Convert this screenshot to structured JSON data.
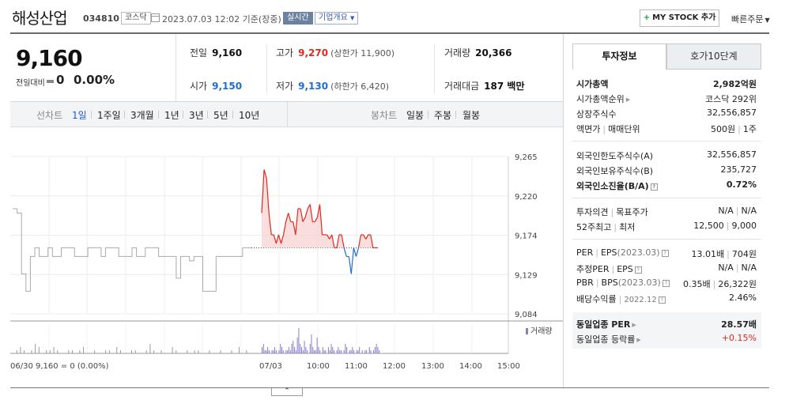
{
  "header": {
    "stock_name": "해성산업",
    "stock_code": "034810",
    "market": "코스닥",
    "datetime": "2023.07.03 12:02  기준(장중)",
    "realtime_badge": "실시간",
    "overview_label": "기업개요",
    "my_stock_label": "MY STOCK 추가",
    "quick_order_label": "빠른주문"
  },
  "price": {
    "current": "9,160",
    "change_label": "전일대비",
    "change_value": "0",
    "change_pct": "0.00%"
  },
  "stats": {
    "prev_close_label": "전일",
    "prev_close": "9,160",
    "open_label": "시가",
    "open": "9,150",
    "high_label": "고가",
    "high": "9,270",
    "upper_limit": "(상한가 11,900)",
    "low_label": "저가",
    "low": "9,130",
    "lower_limit": "(하한가 6,420)",
    "volume_label": "거래량",
    "volume": "20,366",
    "amount_label": "거래대금",
    "amount": "187 백만"
  },
  "line_tabs": {
    "label": "선차트",
    "items": [
      "1일",
      "1주일",
      "3개월",
      "1년",
      "3년",
      "5년",
      "10년"
    ],
    "active": "1일"
  },
  "candle_tabs": {
    "label": "봉차트",
    "items": [
      "일봉",
      "주봉",
      "월봉"
    ]
  },
  "chart_data": {
    "type": "line",
    "yticks": [
      "9,265",
      "9,220",
      "9,174",
      "9,129",
      "9,084"
    ],
    "xticks": [
      "07/03",
      "10:00",
      "11:00",
      "12:00",
      "13:00",
      "14:00",
      "15:00"
    ],
    "ylim": [
      9084,
      9265
    ],
    "baseline": 9160,
    "prev_day_label": "06/30  9,160 = 0 (0.00%)",
    "volume_legend": "거래량",
    "colors": {
      "up": "#e0291f",
      "down": "#1f6fd1",
      "prev": "#aaaaaa",
      "volume": "#8a7cc9"
    },
    "prev_day_series": [
      9205,
      9200,
      9130,
      9110,
      9150,
      9160,
      9150,
      9150,
      9160,
      9150,
      9150,
      9160,
      9160,
      9160,
      9150,
      9150,
      9150,
      9160,
      9160,
      9160,
      9150,
      9160,
      9160,
      9160,
      9150,
      9150,
      9150,
      9160,
      9150,
      9150,
      9160,
      9160,
      9160,
      9150,
      9150,
      9150,
      9150,
      9125,
      9150,
      9150,
      9145,
      9150,
      9150,
      9110,
      9110,
      9110,
      9150,
      9150,
      9150,
      9150,
      9150,
      9150,
      9160,
      9160,
      9160
    ],
    "today_series": [
      9200,
      9250,
      9240,
      9200,
      9175,
      9175,
      9165,
      9175,
      9165,
      9175,
      9190,
      9200,
      9190,
      9190,
      9175,
      9205,
      9205,
      9190,
      9195,
      9205,
      9210,
      9190,
      9190,
      9195,
      9210,
      9175,
      9175,
      9175,
      9170,
      9175,
      9160,
      9160,
      9175,
      9175,
      9160,
      9150,
      9150,
      9130,
      9160,
      9150,
      9160,
      9175,
      9175,
      9170,
      9175,
      9175,
      9160,
      9160,
      9160
    ],
    "volume_day1": [
      0,
      1,
      2,
      1,
      0,
      1,
      3,
      2,
      0,
      1,
      1,
      2,
      1,
      0,
      0,
      1,
      1,
      0,
      1,
      2,
      0,
      0,
      1,
      0,
      0,
      1,
      1,
      0,
      2,
      1,
      0,
      0,
      1,
      1,
      0,
      0,
      1,
      3,
      1,
      0,
      1,
      0,
      0,
      2,
      1,
      0,
      0,
      1,
      0,
      1,
      1,
      0,
      0,
      1,
      0,
      0,
      1,
      0,
      0,
      1,
      0,
      2,
      0,
      1
    ],
    "volume_day2": [
      2,
      3,
      1,
      1,
      2,
      1,
      0,
      1,
      1,
      2,
      1,
      0,
      1,
      3,
      2,
      1,
      0,
      1,
      1,
      2,
      1,
      3,
      4,
      2,
      1,
      5,
      8,
      3,
      2,
      1,
      4,
      2,
      1,
      0,
      3,
      6,
      2,
      1,
      1,
      5,
      2,
      1,
      0,
      2,
      1,
      1,
      0,
      2,
      1,
      3,
      2,
      1,
      0,
      1,
      2,
      1,
      1,
      0,
      1,
      3,
      2,
      0,
      1,
      1,
      2,
      1,
      0,
      1,
      1,
      2,
      0,
      1,
      0,
      1,
      1,
      0,
      2,
      1,
      0,
      1,
      2,
      3,
      2,
      1
    ]
  },
  "right_panel": {
    "tab_active": "투자정보",
    "tab_inactive": "호가10단계",
    "market_cap_label": "시가총액",
    "market_cap": "2,982억원",
    "market_cap_rank_label": "시가총액순위",
    "market_cap_rank": "코스닥 292위",
    "shares_label": "상장주식수",
    "shares": "32,556,857",
    "par_label": "액면가",
    "unit_label": "매매단위",
    "par": "500원",
    "unit": "1주",
    "foreign_limit_label": "외국인한도주식수(A)",
    "foreign_limit": "32,556,857",
    "foreign_hold_label": "외국인보유주식수(B)",
    "foreign_hold": "235,727",
    "foreign_ratio_label": "외국인소진율(B/A)",
    "foreign_ratio": "0.72%",
    "opinion_label": "투자의견",
    "target_label": "목표주가",
    "opinion": "N/A",
    "target": "N/A",
    "w52_high_label": "52주최고",
    "w52_low_label": "최저",
    "w52_high": "12,500",
    "w52_low": "9,000",
    "per_label": "PER",
    "eps_label": "EPS",
    "eps_period": "(2023.03)",
    "per": "13.01배",
    "eps": "704원",
    "est_per_label": "추정PER",
    "est_eps_label": "EPS",
    "est_per": "N/A",
    "est_eps": "N/A",
    "pbr_label": "PBR",
    "bps_label": "BPS",
    "bps_period": "(2023.03)",
    "pbr": "0.35배",
    "bps": "26,322원",
    "div_label": "배당수익률",
    "div_period": "2022.12",
    "div": "2.46%",
    "ind_per_label": "동일업종 PER",
    "ind_per": "28.57배",
    "ind_rate_label": "동일업종 등락률",
    "ind_rate": "+0.15%"
  }
}
